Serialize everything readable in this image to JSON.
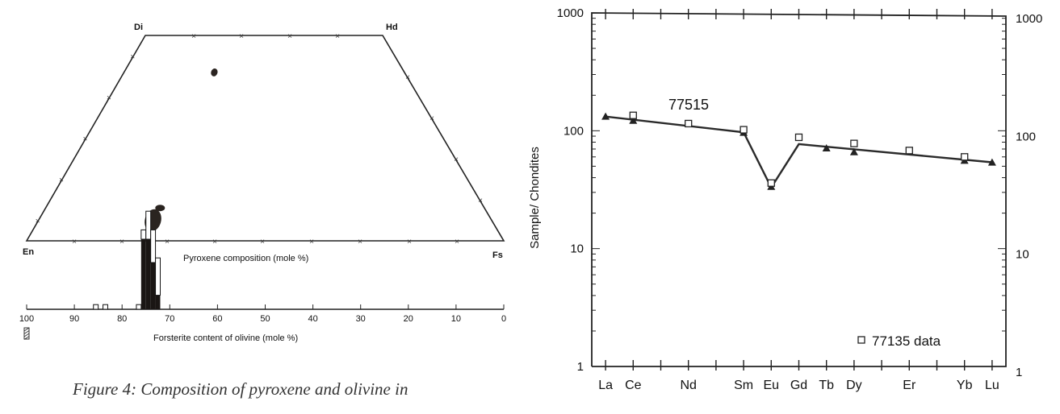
{
  "caption": "Figure 4:  Composition of pyroxene and olivine in",
  "chart_data": [
    {
      "type": "scatter",
      "subtype": "pyroxene-quadrilateral-with-olivine-histogram",
      "corner_labels": {
        "top_left": "Di",
        "top_right": "Hd",
        "bottom_left": "En",
        "bottom_right": "Fs"
      },
      "pyroxene_label": "Pyroxene composition (mole %)",
      "olivine_axis": {
        "label": "Forsterite content of olivine (mole %)",
        "range": [
          100,
          0
        ],
        "ticks": [
          100,
          90,
          80,
          70,
          60,
          50,
          40,
          30,
          20,
          10,
          0
        ]
      },
      "pyroxene_fields": [
        {
          "Wo": 41,
          "Fs": 19,
          "kind": "filled"
        },
        {
          "Wo": 8,
          "Fs": 24,
          "kind": "filled"
        },
        {
          "Wo": 5,
          "Fs": 24,
          "kind": "filled"
        },
        {
          "Wo": 1,
          "Fs": 25,
          "kind": "open-triangle"
        }
      ],
      "olivine_histogram": [
        {
          "Fo": 85.5,
          "count": 1,
          "kind": "open"
        },
        {
          "Fo": 83.5,
          "count": 1,
          "kind": "open"
        },
        {
          "Fo": 76.5,
          "count": 1,
          "kind": "open"
        },
        {
          "Fo": 75.5,
          "count": 15,
          "kind": "filled"
        },
        {
          "Fo": 74.5,
          "count": 15,
          "kind": "filled"
        },
        {
          "Fo": 73.5,
          "count": 10,
          "kind": "filled"
        },
        {
          "Fo": 72.5,
          "count": 3,
          "kind": "filled"
        },
        {
          "Fo": 75.5,
          "count": 2,
          "kind": "open"
        },
        {
          "Fo": 74.5,
          "count": 6,
          "kind": "open"
        },
        {
          "Fo": 73.5,
          "count": 7,
          "kind": "open"
        },
        {
          "Fo": 72.5,
          "count": 8,
          "kind": "open"
        }
      ]
    },
    {
      "type": "line",
      "yscale": "log",
      "ylim": [
        1,
        1000
      ],
      "ylabel": "Sample/ Chondites",
      "yticks": [
        1,
        10,
        100,
        1000
      ],
      "categories": [
        "La",
        "Ce",
        "Nd",
        "Sm",
        "Eu",
        "Gd",
        "Tb",
        "Dy",
        "Er",
        "Yb",
        "Lu"
      ],
      "x_positions": {
        "La": 57,
        "Ce": 58,
        "Nd": 60,
        "Sm": 62,
        "Eu": 63,
        "Gd": 64,
        "Tb": 65,
        "Dy": 66,
        "Er": 68,
        "Yb": 70,
        "Lu": 71
      },
      "series": [
        {
          "name": "77515",
          "marker": "triangle",
          "points": [
            {
              "el": "La",
              "value": 130
            },
            {
              "el": "Ce",
              "value": 120
            },
            {
              "el": "Sm",
              "value": 95
            },
            {
              "el": "Eu",
              "value": 33
            },
            {
              "el": "Tb",
              "value": 70
            },
            {
              "el": "Dy",
              "value": 65
            },
            {
              "el": "Yb",
              "value": 55
            },
            {
              "el": "Lu",
              "value": 53
            }
          ],
          "line": [
            {
              "el": "La",
              "value": 132
            },
            {
              "el": "Sm",
              "value": 97
            },
            {
              "el": "Eu",
              "value": 33
            },
            {
              "el": "Gd",
              "value": 77
            },
            {
              "el": "Lu",
              "value": 54
            }
          ]
        },
        {
          "name": "77135 data",
          "marker": "open-square",
          "points": [
            {
              "el": "Ce",
              "value": 135
            },
            {
              "el": "Nd",
              "value": 115
            },
            {
              "el": "Sm",
              "value": 102
            },
            {
              "el": "Eu",
              "value": 36
            },
            {
              "el": "Gd",
              "value": 88
            },
            {
              "el": "Dy",
              "value": 78
            },
            {
              "el": "Er",
              "value": 68
            },
            {
              "el": "Yb",
              "value": 60
            }
          ]
        }
      ]
    }
  ]
}
